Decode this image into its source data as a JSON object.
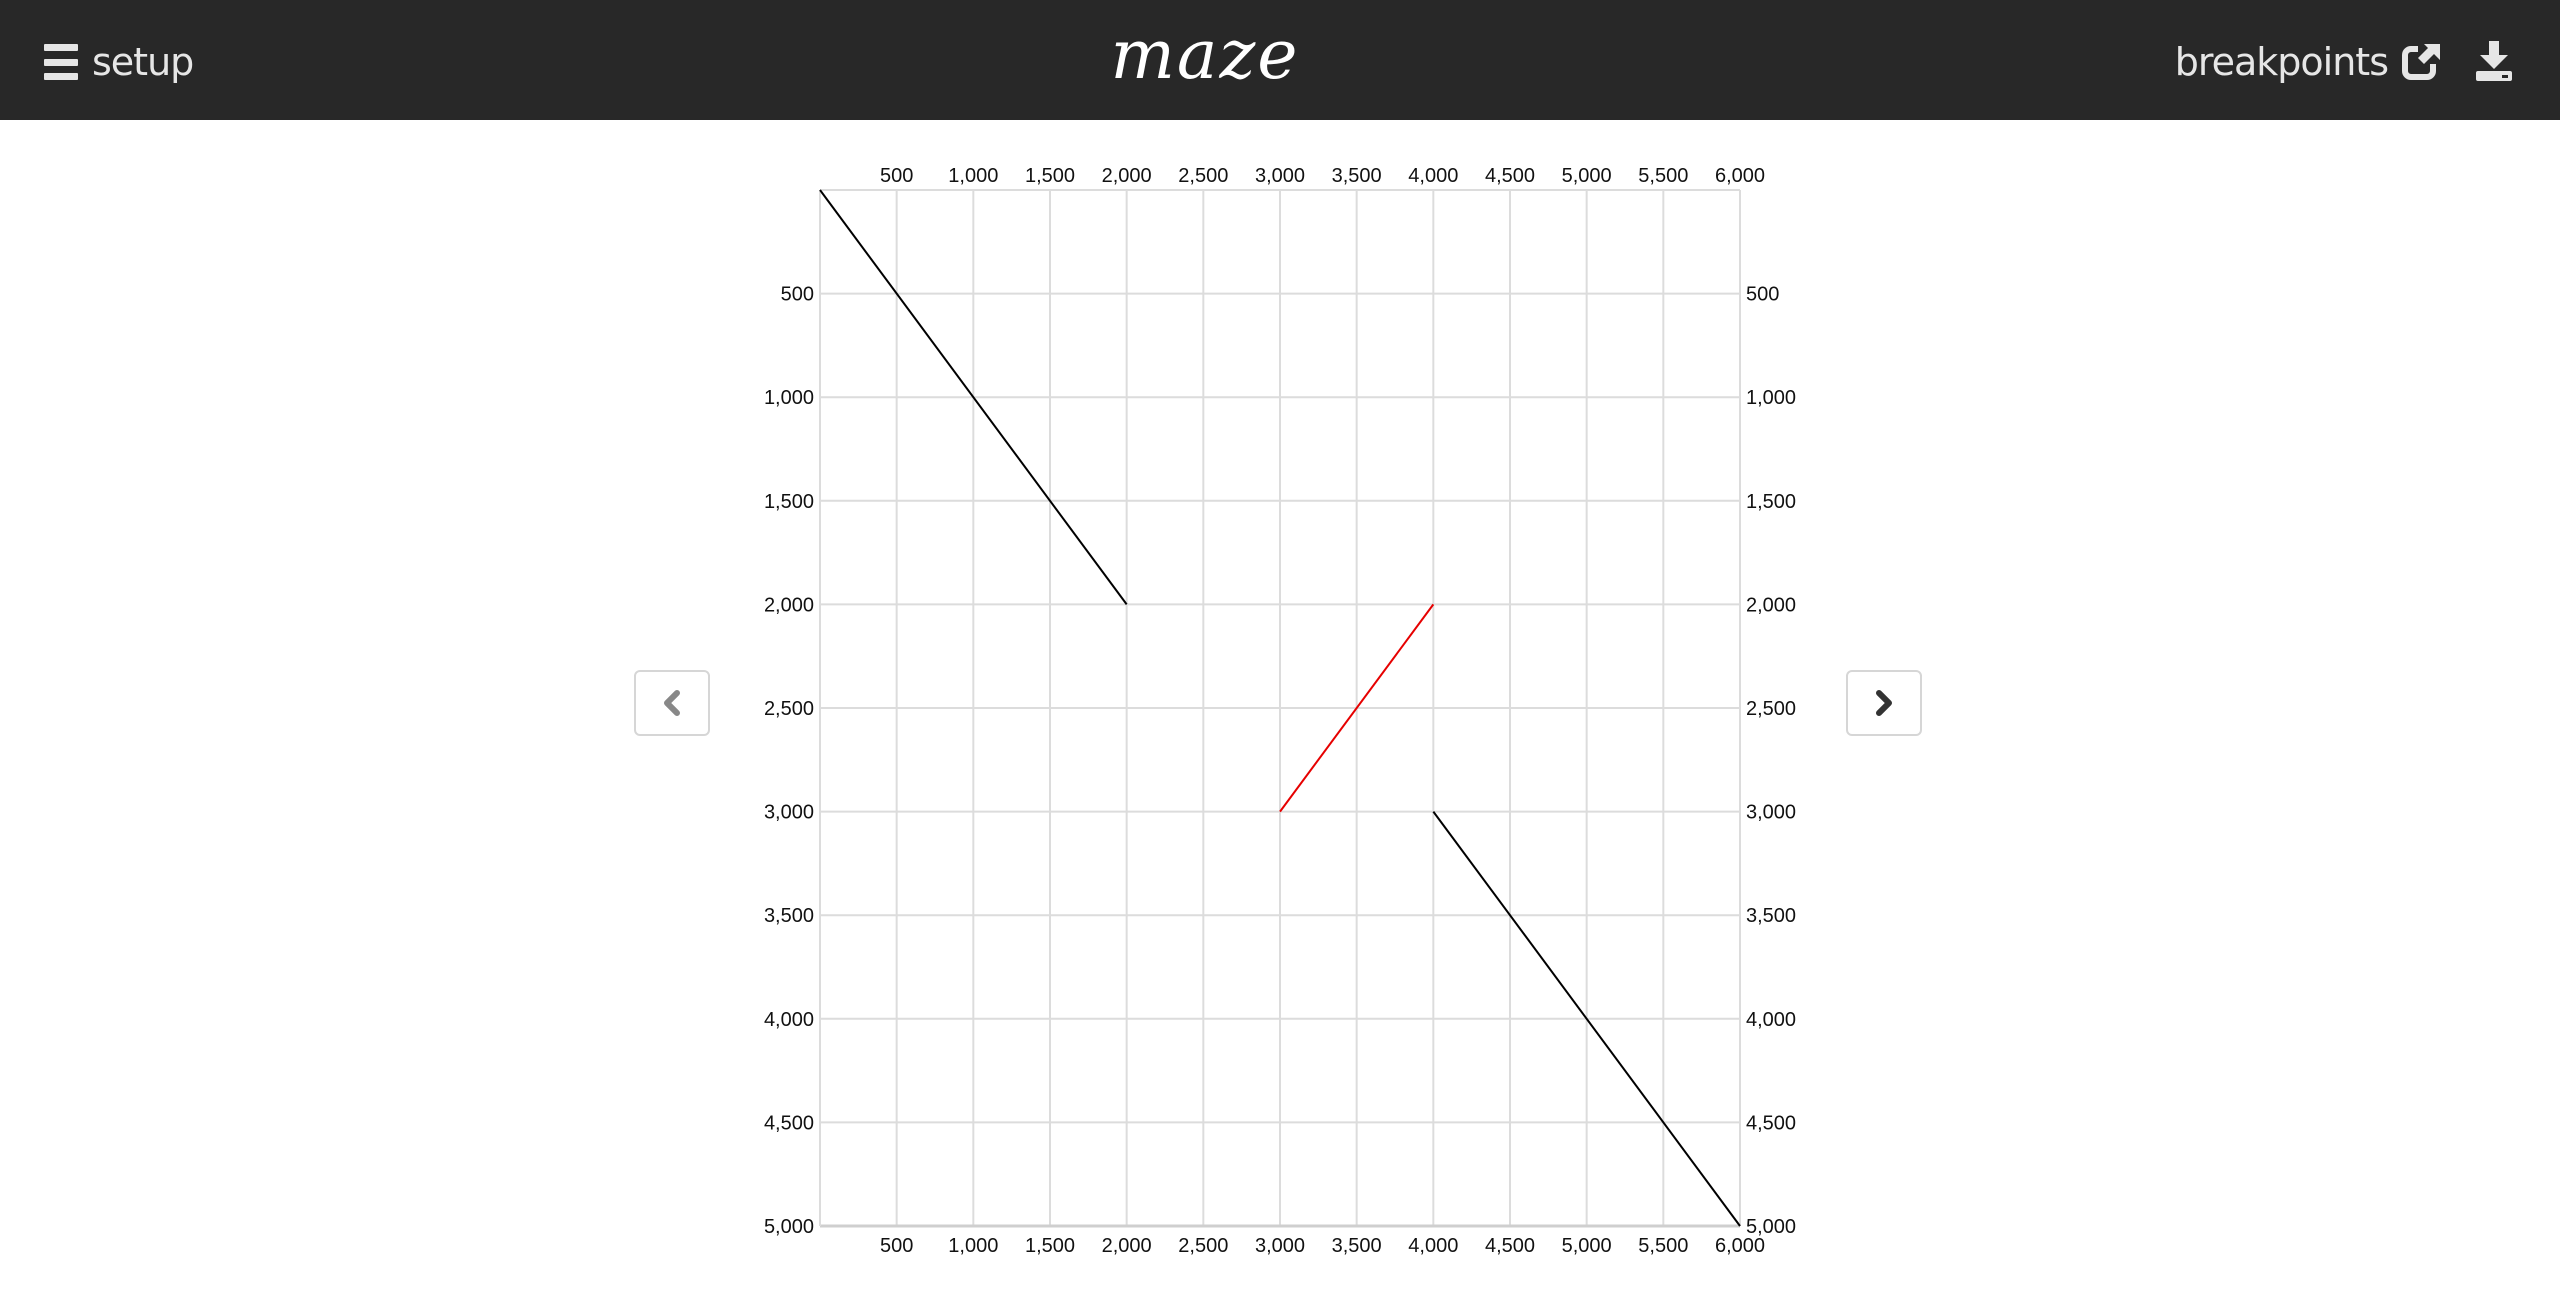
{
  "header": {
    "menu_label": "setup",
    "brand": "maze",
    "breakpoints_label": "breakpoints",
    "icons": {
      "menu": "hamburger-icon",
      "external": "external-link-icon",
      "download": "download-icon"
    }
  },
  "nav": {
    "prev_icon": "chevron-left-icon",
    "next_icon": "chevron-right-icon"
  },
  "chart_data": {
    "type": "line",
    "xlim": [
      0,
      6000
    ],
    "ylim": [
      0,
      5000
    ],
    "y_inverted": true,
    "grid": true,
    "x_ticks": [
      500,
      1000,
      1500,
      2000,
      2500,
      3000,
      3500,
      4000,
      4500,
      5000,
      5500,
      6000
    ],
    "y_ticks": [
      500,
      1000,
      1500,
      2000,
      2500,
      3000,
      3500,
      4000,
      4500,
      5000
    ],
    "x_tick_labels": [
      "500",
      "1,000",
      "1,500",
      "2,000",
      "2,500",
      "3,000",
      "3,500",
      "4,000",
      "4,500",
      "5,000",
      "5,500",
      "6,000"
    ],
    "y_tick_labels": [
      "500",
      "1,000",
      "1,500",
      "2,000",
      "2,500",
      "3,000",
      "3,500",
      "4,000",
      "4,500",
      "5,000"
    ],
    "series": [
      {
        "color": "#000000",
        "points": [
          [
            0,
            0
          ],
          [
            2000,
            2000
          ]
        ]
      },
      {
        "color": "#e60000",
        "points": [
          [
            3000,
            3000
          ],
          [
            4000,
            2000
          ]
        ]
      },
      {
        "color": "#000000",
        "points": [
          [
            4000,
            3000
          ],
          [
            6000,
            5000
          ]
        ]
      }
    ]
  }
}
